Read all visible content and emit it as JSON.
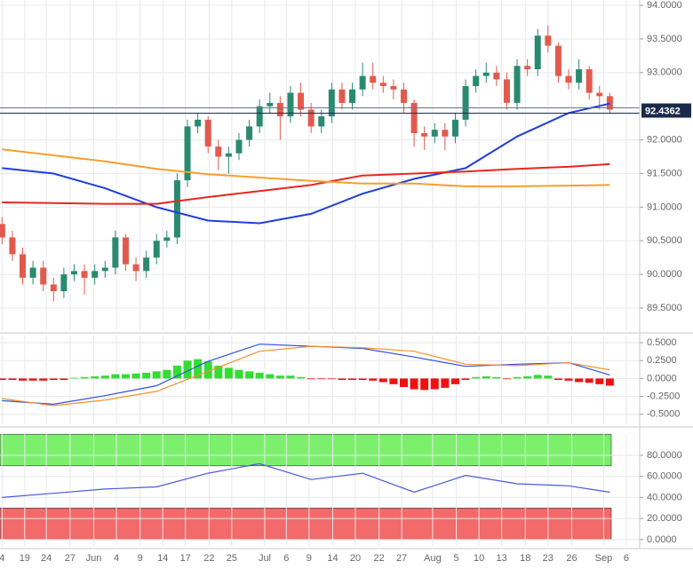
{
  "chart_data": [
    {
      "type": "candlestick",
      "xlim": [
        -0.2,
        61.9
      ],
      "ylim": [
        89.17,
        94.08
      ],
      "yticks": [
        {
          "value": 94,
          "label": "94.0000"
        },
        {
          "value": 93.5,
          "label": "93.5000"
        },
        {
          "value": 93,
          "label": "93.0000"
        },
        {
          "value": 92,
          "label": "92.0000"
        },
        {
          "value": 91.5,
          "label": "91.5000"
        },
        {
          "value": 91,
          "label": "91.0000"
        },
        {
          "value": 90.5,
          "label": "90.5000"
        },
        {
          "value": 90,
          "label": "90.0000"
        },
        {
          "value": 89.5,
          "label": "89.5000"
        }
      ],
      "up_color": "#2a8a70",
      "down_color": "#e25a4e",
      "open": [
        90.75,
        90.55,
        90.3,
        89.95,
        90.1,
        89.85,
        89.75,
        90.0,
        90.05,
        89.95,
        90.05,
        90.1,
        90.55,
        90.15,
        90.05,
        90.25,
        90.5,
        90.55,
        91.4,
        92.2,
        92.3,
        91.9,
        91.75,
        91.8,
        92.0,
        92.2,
        92.5,
        92.55,
        92.35,
        92.7,
        92.45,
        92.2,
        92.35,
        92.75,
        92.55,
        92.75,
        92.95,
        92.85,
        92.8,
        92.75,
        92.55,
        92.1,
        92.05,
        92.15,
        92.05,
        92.3,
        92.8,
        92.95,
        93.0,
        92.9,
        92.55,
        93.1,
        93.05,
        93.55,
        93.4,
        92.95,
        92.85,
        93.05,
        92.7,
        92.65
      ],
      "high": [
        90.85,
        90.65,
        90.4,
        90.2,
        90.2,
        89.95,
        90.1,
        90.15,
        90.15,
        90.15,
        90.2,
        90.65,
        90.6,
        90.25,
        90.35,
        90.6,
        90.65,
        91.5,
        92.3,
        92.4,
        92.35,
        92.0,
        91.9,
        92.1,
        92.3,
        92.6,
        92.7,
        92.65,
        92.8,
        92.85,
        92.55,
        92.45,
        92.85,
        92.85,
        92.85,
        93.15,
        93.15,
        92.95,
        92.9,
        92.85,
        92.6,
        92.2,
        92.25,
        92.25,
        92.4,
        92.9,
        93.05,
        93.15,
        93.1,
        93.0,
        93.2,
        93.2,
        93.65,
        93.7,
        93.45,
        93.05,
        93.2,
        93.1,
        92.8,
        92.7
      ],
      "low": [
        90.45,
        90.2,
        89.85,
        89.85,
        89.75,
        89.6,
        89.65,
        89.9,
        89.7,
        89.85,
        89.95,
        90.0,
        90.05,
        89.9,
        89.95,
        90.15,
        90.4,
        90.45,
        91.3,
        92.1,
        91.8,
        91.55,
        91.5,
        91.7,
        91.9,
        92.1,
        92.4,
        92.0,
        92.25,
        92.35,
        92.1,
        92.1,
        92.25,
        92.45,
        92.45,
        92.65,
        92.75,
        92.7,
        92.6,
        92.4,
        91.9,
        91.85,
        91.95,
        91.85,
        91.95,
        92.2,
        92.7,
        92.85,
        92.8,
        92.45,
        92.45,
        92.95,
        92.95,
        93.3,
        92.85,
        92.75,
        92.75,
        92.6,
        92.45,
        92.4
      ],
      "close": [
        90.55,
        90.3,
        89.95,
        90.1,
        89.85,
        89.75,
        90.0,
        90.05,
        89.95,
        90.05,
        90.1,
        90.55,
        90.15,
        90.05,
        90.25,
        90.5,
        90.55,
        91.4,
        92.2,
        92.3,
        91.9,
        91.75,
        91.8,
        92.0,
        92.2,
        92.5,
        92.55,
        92.35,
        92.7,
        92.45,
        92.2,
        92.35,
        92.75,
        92.55,
        92.75,
        92.95,
        92.85,
        92.8,
        92.75,
        92.55,
        92.1,
        92.05,
        92.15,
        92.05,
        92.3,
        92.8,
        92.95,
        93.0,
        92.9,
        92.55,
        93.1,
        93.05,
        93.55,
        93.4,
        92.95,
        92.85,
        93.05,
        92.7,
        92.65,
        92.45
      ],
      "lines": [
        {
          "color": "#1f3fdc",
          "x": [
            0,
            5,
            10,
            15,
            20,
            25,
            30,
            35,
            40,
            45,
            50,
            55,
            59
          ],
          "values": [
            91.58,
            91.5,
            91.28,
            91.0,
            90.8,
            90.76,
            90.9,
            91.2,
            91.42,
            91.58,
            92.05,
            92.4,
            92.54
          ]
        },
        {
          "color": "#e8261f",
          "x": [
            0,
            5,
            10,
            15,
            20,
            25,
            30,
            35,
            40,
            45,
            50,
            55,
            59
          ],
          "values": [
            91.07,
            91.06,
            91.05,
            91.05,
            91.15,
            91.24,
            91.33,
            91.47,
            91.5,
            91.53,
            91.57,
            91.6,
            91.64
          ]
        },
        {
          "color": "#f5a030",
          "x": [
            0,
            5,
            10,
            15,
            20,
            25,
            30,
            35,
            40,
            45,
            50,
            55,
            59
          ],
          "values": [
            91.86,
            91.77,
            91.68,
            91.57,
            91.49,
            91.44,
            91.39,
            91.35,
            91.35,
            91.31,
            91.31,
            91.32,
            91.33
          ]
        }
      ],
      "last_value": 92.4362
    },
    {
      "type": "macd",
      "xlim": [
        -0.2,
        61.9
      ],
      "ylim": [
        -0.64,
        0.6
      ],
      "yticks": [
        {
          "value": 0.5,
          "label": "0.5000"
        },
        {
          "value": 0.25,
          "label": "0.2500"
        },
        {
          "value": 0,
          "label": "0.0000"
        },
        {
          "value": -0.25,
          "label": "-0.2500"
        },
        {
          "value": -0.5,
          "label": "-0.5000"
        }
      ],
      "pos_color": "#33dd33",
      "neg_color": "#ee1111",
      "histogram": [
        -0.02,
        -0.02,
        -0.03,
        -0.03,
        -0.03,
        -0.02,
        -0.02,
        0.01,
        0.02,
        0.03,
        0.04,
        0.06,
        0.06,
        0.07,
        0.08,
        0.1,
        0.12,
        0.18,
        0.25,
        0.27,
        0.24,
        0.18,
        0.15,
        0.12,
        0.1,
        0.08,
        0.06,
        0.04,
        0.04,
        0.02,
        -0.01,
        -0.01,
        -0.01,
        -0.02,
        -0.02,
        -0.02,
        -0.03,
        -0.05,
        -0.08,
        -0.12,
        -0.15,
        -0.16,
        -0.15,
        -0.13,
        -0.08,
        -0.02,
        0.02,
        0.03,
        0.02,
        -0.01,
        0.02,
        0.03,
        0.05,
        0.04,
        -0.02,
        -0.03,
        -0.05,
        -0.06,
        -0.08,
        -0.1
      ],
      "lines": [
        {
          "color": "#3050e0",
          "x": [
            0,
            5,
            10,
            15,
            20,
            25,
            30,
            35,
            40,
            45,
            50,
            55,
            59
          ],
          "values": [
            -0.31,
            -0.36,
            -0.24,
            -0.1,
            0.24,
            0.48,
            0.45,
            0.42,
            0.3,
            0.17,
            0.2,
            0.22,
            0.05
          ]
        },
        {
          "color": "#f5902a",
          "x": [
            0,
            5,
            10,
            15,
            20,
            25,
            30,
            35,
            40,
            45,
            50,
            55,
            59
          ],
          "values": [
            -0.28,
            -0.38,
            -0.3,
            -0.18,
            0.1,
            0.38,
            0.45,
            0.43,
            0.38,
            0.2,
            0.18,
            0.22,
            0.12
          ]
        }
      ]
    },
    {
      "type": "line",
      "xlim": [
        -0.2,
        61.9
      ],
      "ylim": [
        -6,
        101
      ],
      "yticks": [
        {
          "value": 80,
          "label": "80.0000"
        },
        {
          "value": 60,
          "label": "60.0000"
        },
        {
          "value": 40,
          "label": "40.0000"
        },
        {
          "value": 20,
          "label": "20.0000"
        },
        {
          "value": 0,
          "label": "0.0000"
        }
      ],
      "bands": [
        {
          "range": [
            70,
            100
          ],
          "color": "#7cf06c"
        },
        {
          "range": [
            0,
            30
          ],
          "color": "#f26a6a"
        }
      ],
      "series": [
        {
          "color": "#4a5ad9",
          "x": [
            0,
            5,
            10,
            15,
            20,
            25,
            30,
            35,
            40,
            45,
            50,
            55,
            59
          ],
          "values": [
            40,
            44,
            48,
            50,
            63,
            72,
            57,
            63,
            45,
            61,
            53,
            51,
            45
          ]
        }
      ],
      "xticks": [
        {
          "value": 0,
          "label": "4"
        },
        {
          "value": 2.2,
          "label": "19"
        },
        {
          "value": 4.3,
          "label": "24"
        },
        {
          "value": 6.6,
          "label": "27"
        },
        {
          "value": 8.9,
          "label": "Jun"
        },
        {
          "value": 11.1,
          "label": "4"
        },
        {
          "value": 13.4,
          "label": "9"
        },
        {
          "value": 15.6,
          "label": "14"
        },
        {
          "value": 17.8,
          "label": "17"
        },
        {
          "value": 20.1,
          "label": "22"
        },
        {
          "value": 22.3,
          "label": "25"
        },
        {
          "value": 25.5,
          "label": "Jul"
        },
        {
          "value": 27.6,
          "label": "6"
        },
        {
          "value": 29.8,
          "label": "9"
        },
        {
          "value": 32.1,
          "label": "14"
        },
        {
          "value": 34.3,
          "label": "20"
        },
        {
          "value": 36.6,
          "label": "22"
        },
        {
          "value": 38.8,
          "label": "27"
        },
        {
          "value": 41.8,
          "label": "Aug"
        },
        {
          "value": 44.1,
          "label": "5"
        },
        {
          "value": 46.3,
          "label": "10"
        },
        {
          "value": 48.5,
          "label": "13"
        },
        {
          "value": 50.8,
          "label": "18"
        },
        {
          "value": 53.0,
          "label": "23"
        },
        {
          "value": 55.3,
          "label": "26"
        },
        {
          "value": 58.4,
          "label": "Sep"
        },
        {
          "value": 60.6,
          "label": "6"
        }
      ]
    }
  ]
}
